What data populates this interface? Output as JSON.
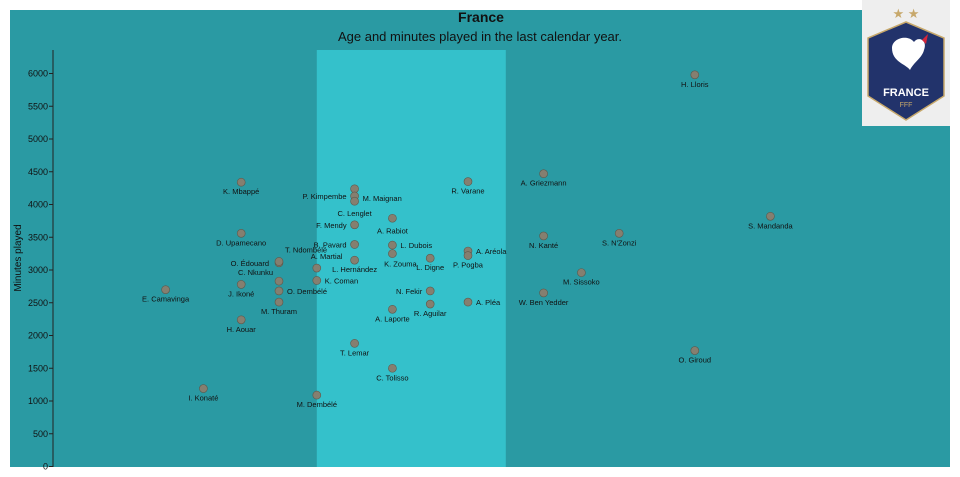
{
  "chart_data": {
    "type": "scatter",
    "title": "France",
    "subtitle": "Age and minutes played in the last calendar year.",
    "xlabel": "",
    "ylabel": "Minutes played",
    "xlim": [
      18,
      37
    ],
    "ylim": [
      0,
      6300
    ],
    "yticks": [
      0,
      500,
      1000,
      1500,
      2000,
      2500,
      3000,
      3500,
      4000,
      4500,
      5000,
      5500,
      6000
    ],
    "highlight_band": [
      24,
      29
    ],
    "grid": false,
    "point_color": "#857f70",
    "points": [
      {
        "name": "E. Camavinga",
        "x": 20.0,
        "y": 2700,
        "dx": 0,
        "dy": 12,
        "anchor": "middle"
      },
      {
        "name": "I. Konaté",
        "x": 21.0,
        "y": 1190,
        "dx": 0,
        "dy": 12,
        "anchor": "middle"
      },
      {
        "name": "K. Mbappé",
        "x": 22.0,
        "y": 4340,
        "dx": 0,
        "dy": 12,
        "anchor": "middle"
      },
      {
        "name": "D. Upamecano",
        "x": 22.0,
        "y": 3560,
        "dx": 0,
        "dy": 12,
        "anchor": "middle"
      },
      {
        "name": "J. Ikoné",
        "x": 22.0,
        "y": 2780,
        "dx": 0,
        "dy": 12,
        "anchor": "middle"
      },
      {
        "name": "H. Aouar",
        "x": 22.0,
        "y": 2240,
        "dx": 0,
        "dy": 12,
        "anchor": "middle"
      },
      {
        "name": "O. Édouard",
        "x": 23.0,
        "y": 3110,
        "dx": -10,
        "dy": 3,
        "anchor": "end"
      },
      {
        "name": "T. Ndombélé",
        "x": 23.0,
        "y": 3130,
        "dx": 6,
        "dy": -9,
        "anchor": "start"
      },
      {
        "name": "C. Nkunku",
        "x": 23.0,
        "y": 2830,
        "dx": -6,
        "dy": -6,
        "anchor": "end"
      },
      {
        "name": "O. Dembélé",
        "x": 23.0,
        "y": 2680,
        "dx": 8,
        "dy": 3,
        "anchor": "start"
      },
      {
        "name": "M. Thuram",
        "x": 23.0,
        "y": 2510,
        "dx": 0,
        "dy": 12,
        "anchor": "middle"
      },
      {
        "name": "M. Dembélé",
        "x": 24.0,
        "y": 1090,
        "dx": 0,
        "dy": 12,
        "anchor": "middle"
      },
      {
        "name": "A. Martial",
        "x": 24.0,
        "y": 3030,
        "dx": -6,
        "dy": -9,
        "anchor": "start"
      },
      {
        "name": "K. Coman",
        "x": 24.0,
        "y": 2840,
        "dx": 8,
        "dy": 3,
        "anchor": "start"
      },
      {
        "name": "M. Maignan",
        "x": 25.0,
        "y": 4240,
        "dx": 8,
        "dy": 0,
        "anchor": "start"
      },
      {
        "name": "P. Kimpembe",
        "x": 25.0,
        "y": 4130,
        "dx": -8,
        "dy": 3,
        "anchor": "end"
      },
      {
        "name": "C. Lenglet",
        "x": 25.0,
        "y": 4050,
        "dx": 0,
        "dy": 15,
        "anchor": "middle"
      },
      {
        "name": "F. Mendy",
        "x": 25.0,
        "y": 3690,
        "dx": -8,
        "dy": 3,
        "anchor": "end"
      },
      {
        "name": "B. Pavard",
        "x": 25.0,
        "y": 3390,
        "dx": -8,
        "dy": 3,
        "anchor": "end"
      },
      {
        "name": "L. Hernández",
        "x": 25.0,
        "y": 3150,
        "dx": 0,
        "dy": 12,
        "anchor": "middle"
      },
      {
        "name": "T. Lemar",
        "x": 25.0,
        "y": 1880,
        "dx": 0,
        "dy": 12,
        "anchor": "middle"
      },
      {
        "name": "A. Rabiot",
        "x": 26.0,
        "y": 3790,
        "dx": 0,
        "dy": 15,
        "anchor": "middle"
      },
      {
        "name": "L. Dubois",
        "x": 26.0,
        "y": 3380,
        "dx": 8,
        "dy": 3,
        "anchor": "start"
      },
      {
        "name": "K. Zouma",
        "x": 26.0,
        "y": 3250,
        "dx": 8,
        "dy": 13,
        "anchor": "middle"
      },
      {
        "name": "A. Laporte",
        "x": 26.0,
        "y": 2400,
        "dx": 0,
        "dy": 12,
        "anchor": "middle"
      },
      {
        "name": "C. Tolisso",
        "x": 26.0,
        "y": 1500,
        "dx": 0,
        "dy": 12,
        "anchor": "middle"
      },
      {
        "name": "L. Digne",
        "x": 27.0,
        "y": 3180,
        "dx": 0,
        "dy": 12,
        "anchor": "middle"
      },
      {
        "name": "N. Fekir",
        "x": 27.0,
        "y": 2680,
        "dx": -8,
        "dy": 3,
        "anchor": "end"
      },
      {
        "name": "R. Aguilar",
        "x": 27.0,
        "y": 2480,
        "dx": 0,
        "dy": 12,
        "anchor": "middle"
      },
      {
        "name": "R. Varane",
        "x": 28.0,
        "y": 4350,
        "dx": 0,
        "dy": 12,
        "anchor": "middle"
      },
      {
        "name": "A. Aréola",
        "x": 28.0,
        "y": 3290,
        "dx": 8,
        "dy": 3,
        "anchor": "start"
      },
      {
        "name": "P. Pogba",
        "x": 28.0,
        "y": 3220,
        "dx": 0,
        "dy": 12,
        "anchor": "middle"
      },
      {
        "name": "A. Pléa",
        "x": 28.0,
        "y": 2510,
        "dx": 8,
        "dy": 3,
        "anchor": "start"
      },
      {
        "name": "A. Griezmann",
        "x": 30.0,
        "y": 4470,
        "dx": 0,
        "dy": 12,
        "anchor": "middle"
      },
      {
        "name": "N. Kanté",
        "x": 30.0,
        "y": 3520,
        "dx": 0,
        "dy": 12,
        "anchor": "middle"
      },
      {
        "name": "W. Ben Yedder",
        "x": 30.0,
        "y": 2650,
        "dx": 0,
        "dy": 12,
        "anchor": "middle"
      },
      {
        "name": "S. N'Zonzi",
        "x": 32.0,
        "y": 3560,
        "dx": 0,
        "dy": 12,
        "anchor": "middle"
      },
      {
        "name": "M. Sissoko",
        "x": 31.0,
        "y": 2960,
        "dx": 0,
        "dy": 12,
        "anchor": "middle"
      },
      {
        "name": "H. Lloris",
        "x": 34.0,
        "y": 5980,
        "dx": 0,
        "dy": 12,
        "anchor": "middle"
      },
      {
        "name": "O. Giroud",
        "x": 34.0,
        "y": 1770,
        "dx": 0,
        "dy": 12,
        "anchor": "middle"
      },
      {
        "name": "S. Mandanda",
        "x": 36.0,
        "y": 3820,
        "dx": 0,
        "dy": 12,
        "anchor": "middle"
      }
    ]
  },
  "logo": {
    "text": "FRANCE",
    "subtext": "FFF",
    "stars": "★ ★",
    "shield_color": "#22336b",
    "gold": "#c7a86b"
  }
}
